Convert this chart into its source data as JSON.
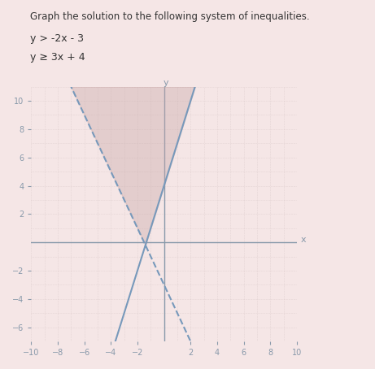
{
  "title": "Graph the solution to the following system of inequalities.",
  "subtitle_line1": "y > -2x - 3",
  "subtitle_line2": "y ≥ 3x + 4",
  "xlim": [
    -10,
    10
  ],
  "ylim": [
    -7,
    11
  ],
  "xticks": [
    -10,
    -8,
    -6,
    -4,
    -2,
    2,
    4,
    6,
    8,
    10
  ],
  "yticks": [
    -6,
    -4,
    -2,
    2,
    4,
    6,
    8,
    10
  ],
  "xlabel": "x",
  "ylabel": "y",
  "background_color": "#f5e6e6",
  "grid_color": "#c8b8b8",
  "axis_color": "#8899aa",
  "tick_label_color": "#8899aa",
  "line1_color": "#7799bb",
  "line2_color": "#7799bb",
  "shade_color": "#c8a8a8",
  "shade_alpha": 0.4,
  "line1_slope": -2,
  "line1_intercept": -3,
  "line2_slope": 3,
  "line2_intercept": 4,
  "line1_dashed": true,
  "line2_dashed": false
}
